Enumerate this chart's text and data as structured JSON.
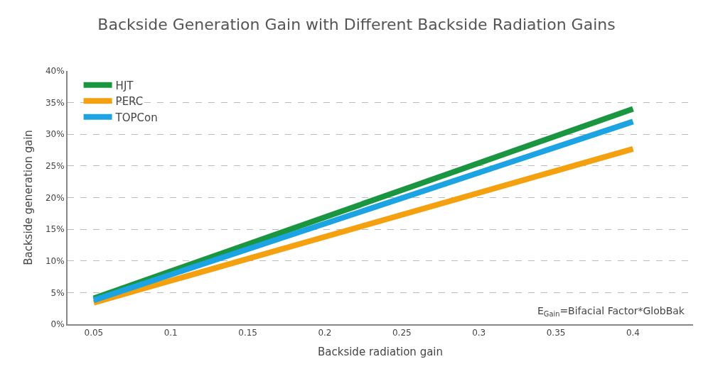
{
  "chart_data": {
    "type": "line",
    "title": "Backside Generation Gain with Different Backside Radiation Gains",
    "xlabel": "Backside radiation gain",
    "ylabel": "Backside generation gain",
    "x": [
      0.05,
      0.4
    ],
    "series": [
      {
        "name": "HJT",
        "color": "#1a9641",
        "values": [
          4.1,
          34
        ]
      },
      {
        "name": "PERC",
        "color": "#f5a00f",
        "values": [
          3.4,
          27.7
        ]
      },
      {
        "name": "TOPCon",
        "color": "#1ca3e3",
        "values": [
          3.8,
          32
        ]
      }
    ],
    "xlim": [
      0.033,
      0.439
    ],
    "xticks": [
      0.05,
      0.1,
      0.15,
      0.2,
      0.25,
      0.3,
      0.35,
      0.4
    ],
    "ylim": [
      0,
      40
    ],
    "yticks": [
      {
        "value": 0,
        "label": "0%"
      },
      {
        "value": 5,
        "label": "5%"
      },
      {
        "value": 10,
        "label": "10%"
      },
      {
        "value": 15,
        "label": "15%"
      },
      {
        "value": 20,
        "label": "20%"
      },
      {
        "value": 25,
        "label": "25%"
      },
      {
        "value": 30,
        "label": "30%"
      },
      {
        "value": 35,
        "label": "35%"
      },
      {
        "value": 40,
        "label": "40%"
      }
    ],
    "grid": "y",
    "legend": "top left",
    "marker": "none",
    "line_style": "solid",
    "annotations": [
      "E$_{Gain}$=Bifacial Factor*GlobBak"
    ]
  }
}
